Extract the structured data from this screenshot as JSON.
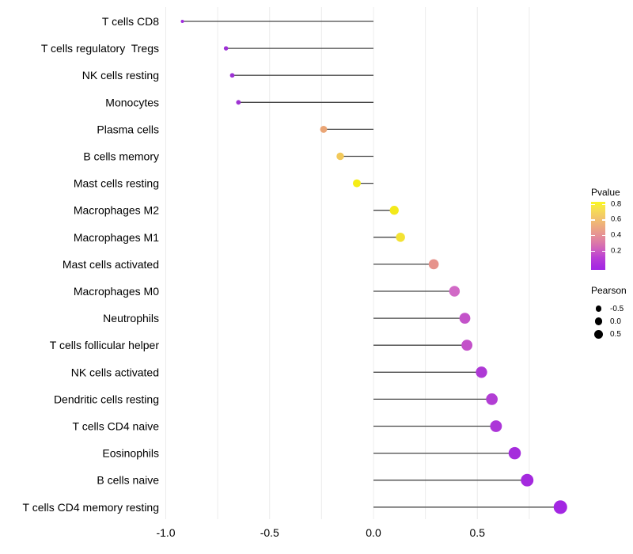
{
  "chart_data": {
    "type": "scatter",
    "variant": "lollipop",
    "title": "",
    "xlabel": "",
    "ylabel": "",
    "categories": [
      "T cells CD8",
      "T cells regulatory  Tregs",
      "NK cells resting",
      "Monocytes",
      "Plasma cells",
      "B cells memory",
      "Mast cells resting",
      "Macrophages M2",
      "Macrophages M1",
      "Mast cells activated",
      "Macrophages M0",
      "Neutrophils",
      "T cells follicular helper",
      "NK cells activated",
      "Dendritic cells resting",
      "T cells CD4 naive",
      "Eosinophils",
      "B cells naive",
      "T cells CD4 memory resting"
    ],
    "series": [
      {
        "name": "Pearson",
        "values": [
          -0.92,
          -0.71,
          -0.68,
          -0.65,
          -0.24,
          -0.16,
          -0.08,
          0.1,
          0.13,
          0.29,
          0.39,
          0.44,
          0.45,
          0.52,
          0.57,
          0.59,
          0.68,
          0.74,
          0.9
        ]
      }
    ],
    "point_colors": [
      "#A22CE0",
      "#9E30D6",
      "#9D31D4",
      "#9E33D2",
      "#EAA575",
      "#F2C95B",
      "#F5ED16",
      "#F3E91A",
      "#F3E233",
      "#E6938C",
      "#D169C6",
      "#C353C9",
      "#C351C9",
      "#AE39D5",
      "#B23ED4",
      "#AC35D8",
      "#A52CDC",
      "#A429DE",
      "#A327E2"
    ],
    "xlim": [
      -1.01,
      0.99
    ],
    "x_ticks": [
      -1.0,
      -0.5,
      0.0,
      0.5
    ],
    "x_tick_labels": [
      "-1.0",
      "-0.5",
      "0.0",
      "0.5"
    ],
    "x_gridlines": [
      -1.0,
      -0.75,
      -0.5,
      -0.25,
      0.0,
      0.25,
      0.5,
      0.75
    ],
    "grid": "vertical-only",
    "stem_origin": 0.0,
    "legend_position": "right"
  },
  "colors": {
    "background": "#ffffff",
    "gridline": "#ECECEC",
    "stem": "#474747",
    "axis_text": "#000000"
  },
  "legend": {
    "pvalue": {
      "title": "Pvalue",
      "tick_labels": [
        "0.8",
        "0.6",
        "0.4",
        "0.2"
      ],
      "tick_values": [
        0.8,
        0.6,
        0.4,
        0.2
      ],
      "gradient_top": "#FAF722",
      "gradient_middle": "#E69394",
      "gradient_bottom": "#A227E4"
    },
    "pearson": {
      "title": "Pearson",
      "item_labels": [
        "-0.5",
        "0.0",
        "0.5"
      ],
      "item_values": [
        -0.5,
        0.0,
        0.5
      ],
      "dot_color": "#000000"
    }
  }
}
